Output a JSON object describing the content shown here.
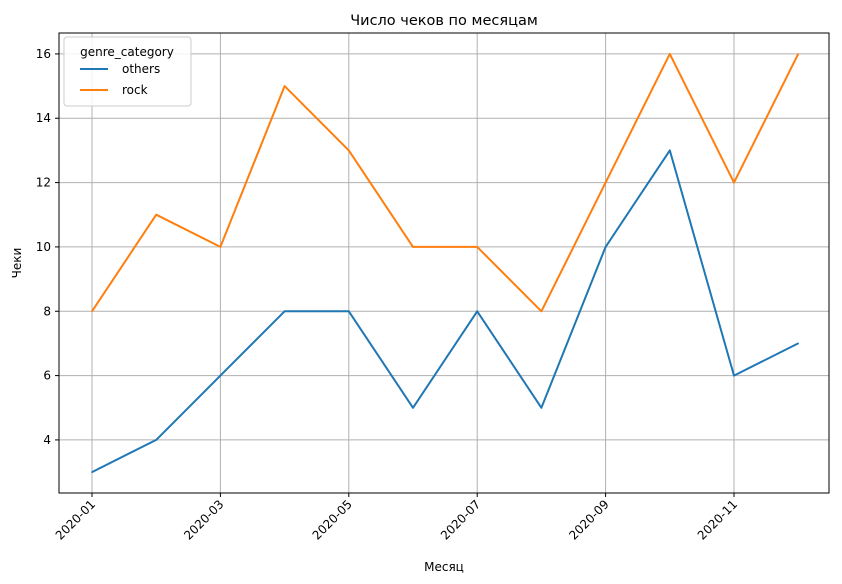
{
  "chart_data": {
    "type": "line",
    "title": "Число чеков по месяцам",
    "xlabel": "Месяц",
    "ylabel": "Чеки",
    "x": [
      "2020-01",
      "2020-02",
      "2020-03",
      "2020-04",
      "2020-05",
      "2020-06",
      "2020-07",
      "2020-08",
      "2020-09",
      "2020-10",
      "2020-11",
      "2020-12"
    ],
    "x_tick_labels": [
      "2020-01",
      "2020-03",
      "2020-05",
      "2020-07",
      "2020-09",
      "2020-11"
    ],
    "y_ticks": [
      4,
      6,
      8,
      10,
      12,
      14,
      16
    ],
    "ylim": [
      2.35,
      16.65
    ],
    "grid": true,
    "legend": {
      "title": "genre_category",
      "placement": "top-left"
    },
    "series": [
      {
        "name": "others",
        "color": "#1f77b4",
        "values": [
          3,
          4,
          6,
          8,
          8,
          5,
          8,
          5,
          10,
          13,
          6,
          7
        ]
      },
      {
        "name": "rock",
        "color": "#ff7f0e",
        "values": [
          8,
          11,
          10,
          15,
          13,
          10,
          10,
          8,
          12,
          16,
          12,
          16
        ]
      }
    ]
  }
}
